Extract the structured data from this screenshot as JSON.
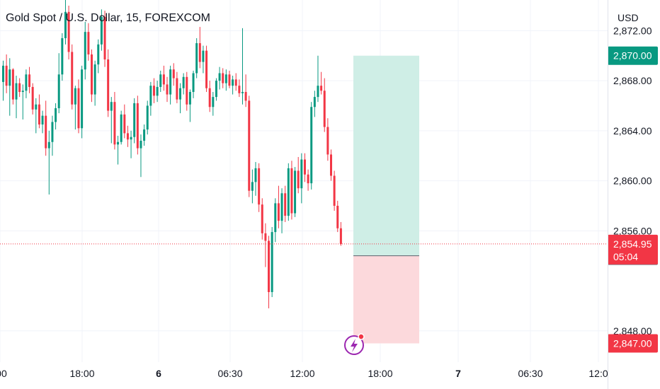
{
  "chart_data": {
    "type": "candlestick",
    "title": "Gold Spot / U.S. Dollar, 15, FOREXCOM",
    "currency": "USD",
    "grid": true,
    "y_range": [
      2845.5,
      2874.0
    ],
    "y_ticks": [
      "2,872.00",
      "2,868.00",
      "2,864.00",
      "2,860.00",
      "2,856.00",
      "2,848.00"
    ],
    "y_tick_values": [
      2872,
      2868,
      2864,
      2860,
      2856,
      2848
    ],
    "x_tick_labels": [
      ":00",
      "18:00",
      "6",
      "06:30",
      "12:00",
      "18:00",
      "7",
      "06:30",
      "12:0"
    ],
    "colors": {
      "up": "#089981",
      "down": "#f23645",
      "profit_zone": "#cfeee6",
      "loss_zone": "#fcd9dc",
      "position_line": "#787b86",
      "badge_green": "#089981",
      "badge_red": "#f23645",
      "badge_gray": "#787b86",
      "icon_purple": "#9c27b0"
    },
    "candles": [
      [
        2867.9,
        2869.6,
        2866.4,
        2869.2
      ],
      [
        2869.2,
        2870.1,
        2867.0,
        2867.6
      ],
      [
        2867.6,
        2869.8,
        2865.2,
        2868.9
      ],
      [
        2868.9,
        2869.0,
        2866.1,
        2866.5
      ],
      [
        2866.5,
        2868.4,
        2865.0,
        2867.8
      ],
      [
        2867.8,
        2868.2,
        2866.7,
        2867.1
      ],
      [
        2867.1,
        2867.7,
        2864.9,
        2867.2
      ],
      [
        2867.2,
        2868.9,
        2866.6,
        2868.5
      ],
      [
        2868.5,
        2869.1,
        2867.0,
        2867.5
      ],
      [
        2867.5,
        2867.8,
        2865.3,
        2865.7
      ],
      [
        2865.7,
        2866.6,
        2863.8,
        2866.1
      ],
      [
        2866.1,
        2866.9,
        2864.2,
        2864.5
      ],
      [
        2864.5,
        2865.6,
        2863.8,
        2865.2
      ],
      [
        2865.2,
        2866.4,
        2862.0,
        2862.6
      ],
      [
        2862.6,
        2864.0,
        2858.9,
        2863.1
      ],
      [
        2863.1,
        2865.2,
        2862.0,
        2864.7
      ],
      [
        2864.7,
        2866.2,
        2864.1,
        2865.8
      ],
      [
        2865.8,
        2870.2,
        2865.4,
        2868.5
      ],
      [
        2868.5,
        2871.8,
        2868.0,
        2871.4
      ],
      [
        2871.4,
        2875.0,
        2870.9,
        2873.5
      ],
      [
        2873.5,
        2874.0,
        2869.7,
        2870.3
      ],
      [
        2870.3,
        2870.9,
        2865.7,
        2866.1
      ],
      [
        2866.1,
        2867.6,
        2864.1,
        2867.4
      ],
      [
        2867.4,
        2868.1,
        2863.8,
        2864.2
      ],
      [
        2864.2,
        2869.2,
        2863.4,
        2868.9
      ],
      [
        2868.9,
        2872.7,
        2868.1,
        2871.9
      ],
      [
        2871.9,
        2872.6,
        2869.6,
        2870.1
      ],
      [
        2870.1,
        2870.5,
        2866.3,
        2866.9
      ],
      [
        2866.9,
        2869.6,
        2866.0,
        2869.3
      ],
      [
        2869.3,
        2871.3,
        2868.6,
        2870.9
      ],
      [
        2870.9,
        2873.7,
        2870.4,
        2873.1
      ],
      [
        2873.1,
        2873.6,
        2869.1,
        2869.7
      ],
      [
        2869.7,
        2870.5,
        2865.1,
        2865.6
      ],
      [
        2865.6,
        2866.7,
        2863.0,
        2866.3
      ],
      [
        2866.3,
        2867.1,
        2862.5,
        2862.9
      ],
      [
        2862.9,
        2863.6,
        2861.3,
        2863.1
      ],
      [
        2863.1,
        2865.6,
        2862.9,
        2865.3
      ],
      [
        2865.3,
        2866.1,
        2863.4,
        2863.8
      ],
      [
        2863.8,
        2864.4,
        2862.7,
        2863.3
      ],
      [
        2863.3,
        2864.0,
        2861.8,
        2863.5
      ],
      [
        2863.5,
        2866.6,
        2863.0,
        2866.2
      ],
      [
        2866.2,
        2866.8,
        2862.1,
        2862.6
      ],
      [
        2862.6,
        2863.7,
        2860.3,
        2863.2
      ],
      [
        2863.2,
        2864.5,
        2862.8,
        2864.1
      ],
      [
        2864.1,
        2866.4,
        2863.7,
        2866.0
      ],
      [
        2866.0,
        2867.9,
        2865.2,
        2867.6
      ],
      [
        2867.6,
        2868.2,
        2866.2,
        2866.8
      ],
      [
        2866.8,
        2868.0,
        2866.3,
        2867.5
      ],
      [
        2867.5,
        2868.8,
        2867.1,
        2868.5
      ],
      [
        2868.5,
        2869.2,
        2867.2,
        2867.7
      ],
      [
        2867.7,
        2868.3,
        2866.3,
        2866.9
      ],
      [
        2866.9,
        2869.2,
        2866.1,
        2868.9
      ],
      [
        2868.9,
        2869.4,
        2867.6,
        2868.2
      ],
      [
        2868.2,
        2868.7,
        2866.2,
        2866.5
      ],
      [
        2866.5,
        2867.8,
        2865.4,
        2867.4
      ],
      [
        2867.4,
        2868.6,
        2866.9,
        2868.3
      ],
      [
        2868.3,
        2868.7,
        2865.6,
        2866.1
      ],
      [
        2866.1,
        2867.3,
        2864.7,
        2867.1
      ],
      [
        2867.1,
        2868.8,
        2866.6,
        2868.6
      ],
      [
        2868.6,
        2871.4,
        2868.2,
        2871.0
      ],
      [
        2871.0,
        2872.3,
        2869.0,
        2869.5
      ],
      [
        2869.5,
        2870.8,
        2868.6,
        2870.4
      ],
      [
        2870.4,
        2870.8,
        2867.1,
        2867.4
      ],
      [
        2867.4,
        2868.0,
        2865.5,
        2865.9
      ],
      [
        2865.9,
        2867.1,
        2865.2,
        2866.7
      ],
      [
        2866.7,
        2868.2,
        2866.4,
        2868.0
      ],
      [
        2868.0,
        2869.1,
        2867.3,
        2868.6
      ],
      [
        2868.6,
        2869.0,
        2867.4,
        2867.8
      ],
      [
        2867.8,
        2868.9,
        2867.2,
        2868.5
      ],
      [
        2868.5,
        2868.8,
        2867.4,
        2867.6
      ],
      [
        2867.6,
        2868.4,
        2866.9,
        2868.1
      ],
      [
        2868.1,
        2868.6,
        2867.2,
        2867.6
      ],
      [
        2867.6,
        2868.1,
        2866.7,
        2867.0
      ],
      [
        2867.0,
        2872.2,
        2866.1,
        2867.1
      ],
      [
        2867.1,
        2868.5,
        2865.9,
        2866.4
      ],
      [
        2866.4,
        2866.8,
        2858.7,
        2859.2
      ],
      [
        2859.2,
        2860.9,
        2858.2,
        2859.9
      ],
      [
        2859.9,
        2861.5,
        2858.8,
        2861.0
      ],
      [
        2861.0,
        2861.4,
        2857.5,
        2858.1
      ],
      [
        2858.1,
        2858.6,
        2855.3,
        2855.8
      ],
      [
        2855.8,
        2856.6,
        2853.1,
        2855.2
      ],
      [
        2855.2,
        2855.6,
        2849.8,
        2851.1
      ],
      [
        2851.1,
        2856.3,
        2850.7,
        2855.9
      ],
      [
        2855.9,
        2858.6,
        2855.1,
        2858.2
      ],
      [
        2858.2,
        2859.6,
        2856.2,
        2856.8
      ],
      [
        2856.8,
        2859.4,
        2855.8,
        2859.0
      ],
      [
        2859.0,
        2859.6,
        2856.7,
        2857.2
      ],
      [
        2857.2,
        2861.4,
        2856.8,
        2861.0
      ],
      [
        2861.0,
        2861.6,
        2856.9,
        2857.4
      ],
      [
        2857.4,
        2861.1,
        2857.1,
        2860.8
      ],
      [
        2860.8,
        2861.9,
        2859.0,
        2859.4
      ],
      [
        2859.4,
        2862.2,
        2858.2,
        2861.7
      ],
      [
        2861.7,
        2862.2,
        2859.9,
        2860.5
      ],
      [
        2860.5,
        2860.9,
        2859.2,
        2859.8
      ],
      [
        2859.8,
        2866.3,
        2859.3,
        2865.9
      ],
      [
        2865.9,
        2867.2,
        2865.1,
        2866.7
      ],
      [
        2866.7,
        2870.0,
        2866.3,
        2867.6
      ],
      [
        2867.6,
        2868.7,
        2866.9,
        2867.2
      ],
      [
        2867.2,
        2868.2,
        2863.9,
        2864.3
      ],
      [
        2864.3,
        2865.0,
        2861.6,
        2862.1
      ],
      [
        2862.1,
        2862.5,
        2860.0,
        2860.4
      ],
      [
        2860.4,
        2860.8,
        2857.6,
        2858.0
      ],
      [
        2858.0,
        2858.4,
        2855.9,
        2856.2
      ],
      [
        2856.2,
        2856.7,
        2854.8,
        2854.95
      ]
    ],
    "position": {
      "entry": 2854.0,
      "target": 2870.0,
      "stop": 2847.0
    },
    "last_price": "2,854.95",
    "countdown": "05:04",
    "target_label": "2,870.00",
    "entry_label": "2,854.00",
    "stop_label": "2,847.00"
  }
}
